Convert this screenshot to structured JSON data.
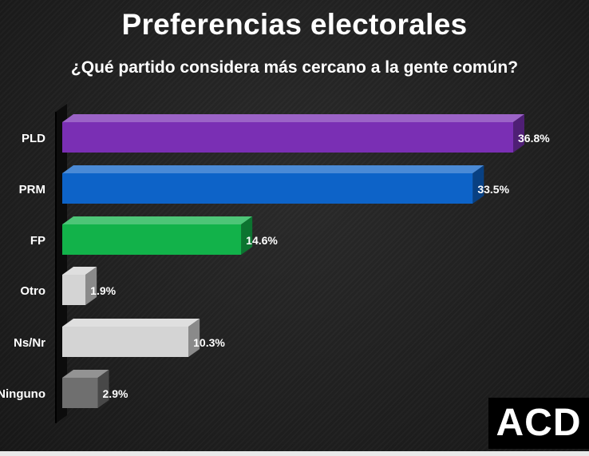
{
  "header": {
    "title": "Preferencias electorales",
    "subtitle": "¿Qué partido considera más cercano a la gente común?"
  },
  "logo": {
    "text": "ACD"
  },
  "chart_data": {
    "type": "bar",
    "orientation": "horizontal",
    "title": "Preferencias electorales",
    "subtitle": "¿Qué partido considera más cercano a la gente común?",
    "categories": [
      "PLD",
      "PRM",
      "FP",
      "Otro",
      "Ns/Nr",
      "Ninguno"
    ],
    "values": [
      36.8,
      33.5,
      14.6,
      1.9,
      10.3,
      2.9
    ],
    "value_labels": [
      "36.8%",
      "33.5%",
      "14.6%",
      "1.9%",
      "10.3%",
      "2.9%"
    ],
    "colors": [
      "#7a2fb4",
      "#0d63c8",
      "#12b24a",
      "#d4d4d4",
      "#d4d4d4",
      "#6f6f6f"
    ],
    "xlim": [
      0,
      36.8
    ],
    "grid": false,
    "legend": "none",
    "xlabel": "",
    "ylabel": ""
  }
}
